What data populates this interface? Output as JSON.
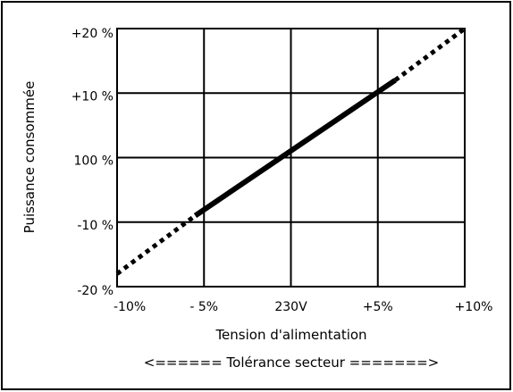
{
  "chart_data": {
    "type": "line",
    "title": "",
    "xlabel": "Tension d'alimentation",
    "ylabel": "Puissance consommée",
    "footnote": "<====== Tolérance secteur =======>",
    "x_ticks": [
      {
        "value": -10,
        "label": "-10%"
      },
      {
        "value": -5,
        "label": "- 5%"
      },
      {
        "value": 0,
        "label": "230V"
      },
      {
        "value": 5,
        "label": "+5%"
      },
      {
        "value": 10,
        "label": "+10%"
      }
    ],
    "y_ticks": [
      {
        "value": -20,
        "label": "-20 %"
      },
      {
        "value": -10,
        "label": "-10 %"
      },
      {
        "value": 0,
        "label": "100 %"
      },
      {
        "value": 10,
        "label": "+10 %"
      },
      {
        "value": 20,
        "label": "+20 %"
      }
    ],
    "xlim": [
      -10,
      10
    ],
    "ylim": [
      -20,
      20
    ],
    "grid": true,
    "series": [
      {
        "style": "dotted",
        "x": [
          -10,
          -5.5
        ],
        "y": [
          -18,
          -9
        ]
      },
      {
        "style": "solid",
        "x": [
          -5.5,
          6
        ],
        "y": [
          -9,
          12
        ]
      },
      {
        "style": "dotted",
        "x": [
          6,
          10
        ],
        "y": [
          12,
          20
        ]
      }
    ],
    "colors": {
      "line": "#000000",
      "grid": "#000000",
      "background": "#ffffff"
    }
  }
}
